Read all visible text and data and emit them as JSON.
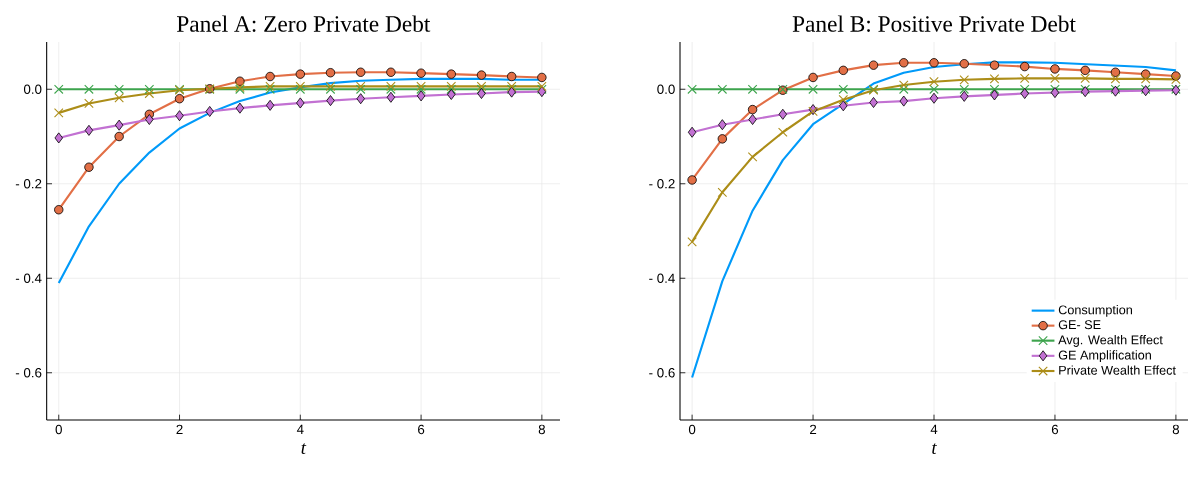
{
  "chart_data": [
    {
      "type": "line",
      "title": "Panel A: Zero Private Debt",
      "xlabel": "t",
      "x": [
        0,
        0.5,
        1,
        1.5,
        2,
        2.5,
        3,
        3.5,
        4,
        4.5,
        5,
        5.5,
        6,
        6.5,
        7,
        7.5,
        8
      ],
      "xlim": [
        -0.2,
        8.3
      ],
      "ylim": [
        -0.7,
        0.1
      ],
      "xticks": [
        0,
        2,
        4,
        6,
        8
      ],
      "yticks": [
        {
          "value": -0.6,
          "label": "- 0.6"
        },
        {
          "value": -0.4,
          "label": "- 0.4"
        },
        {
          "value": -0.2,
          "label": "- 0.2"
        },
        {
          "value": 0,
          "label": "0.0"
        }
      ],
      "grid": true,
      "series": [
        {
          "color": "#009af9",
          "marker": "none",
          "values": [
            -0.41,
            -0.29,
            -0.2,
            -0.134,
            -0.083,
            -0.05,
            -0.025,
            -0.007,
            0.004,
            0.013,
            0.018,
            0.02,
            0.022,
            0.022,
            0.022,
            0.02,
            0.02
          ]
        },
        {
          "color": "#e26f46",
          "marker": "circle",
          "values": [
            -0.255,
            -0.165,
            -0.1,
            -0.053,
            -0.02,
            0.001,
            0.017,
            0.027,
            0.032,
            0.035,
            0.036,
            0.036,
            0.034,
            0.032,
            0.03,
            0.027,
            0.025
          ]
        },
        {
          "color": "#3da44d",
          "marker": "cross",
          "values": [
            0,
            0,
            0,
            0,
            0,
            0,
            0,
            0,
            0,
            0,
            0,
            0,
            0,
            0,
            0,
            0,
            0
          ]
        },
        {
          "color": "#c271d2",
          "marker": "diamond",
          "values": [
            -0.103,
            -0.087,
            -0.076,
            -0.064,
            -0.056,
            -0.047,
            -0.04,
            -0.034,
            -0.029,
            -0.024,
            -0.02,
            -0.017,
            -0.014,
            -0.011,
            -0.009,
            -0.006,
            -0.005
          ]
        },
        {
          "color": "#ac8d18",
          "marker": "cross",
          "values": [
            -0.05,
            -0.03,
            -0.018,
            -0.009,
            -0.002,
            0.001,
            0.004,
            0.006,
            0.006,
            0.006,
            0.006,
            0.006,
            0.006,
            0.006,
            0.006,
            0.006,
            0.006
          ]
        }
      ]
    },
    {
      "type": "line",
      "title": "Panel B: Positive Private Debt",
      "xlabel": "t",
      "x": [
        0,
        0.5,
        1,
        1.5,
        2,
        2.5,
        3,
        3.5,
        4,
        4.5,
        5,
        5.5,
        6,
        6.5,
        7,
        7.5,
        8
      ],
      "xlim": [
        -0.2,
        8.2
      ],
      "ylim": [
        -0.7,
        0.1
      ],
      "xticks": [
        0,
        2,
        4,
        6,
        8
      ],
      "yticks": [
        {
          "value": -0.6,
          "label": "- 0.6"
        },
        {
          "value": -0.4,
          "label": "- 0.4"
        },
        {
          "value": -0.2,
          "label": "- 0.2"
        },
        {
          "value": 0,
          "label": "0.0"
        }
      ],
      "grid": true,
      "legend": "bottom right",
      "series": [
        {
          "name": "Consumption",
          "color": "#009af9",
          "marker": "none",
          "values": [
            -0.61,
            -0.406,
            -0.257,
            -0.15,
            -0.074,
            -0.031,
            0.012,
            0.035,
            0.047,
            0.053,
            0.057,
            0.057,
            0.056,
            0.053,
            0.05,
            0.047,
            0.04
          ]
        },
        {
          "name": "GE- SE",
          "color": "#e26f46",
          "marker": "circle",
          "values": [
            -0.192,
            -0.105,
            -0.043,
            -0.002,
            0.025,
            0.04,
            0.051,
            0.056,
            0.056,
            0.054,
            0.051,
            0.048,
            0.043,
            0.04,
            0.036,
            0.032,
            0.028
          ]
        },
        {
          "name": "Avg. Wealth Effect",
          "color": "#3da44d",
          "marker": "cross",
          "values": [
            0,
            0,
            0,
            0,
            0,
            0,
            0,
            0,
            0,
            0,
            0,
            0,
            0,
            0,
            0,
            0,
            0
          ]
        },
        {
          "name": "GE Amplification",
          "color": "#c271d2",
          "marker": "diamond",
          "values": [
            -0.091,
            -0.075,
            -0.064,
            -0.053,
            -0.043,
            -0.035,
            -0.028,
            -0.025,
            -0.019,
            -0.015,
            -0.012,
            -0.009,
            -0.007,
            -0.005,
            -0.004,
            -0.003,
            -0.002
          ]
        },
        {
          "name": "Private Wealth Effect",
          "color": "#ac8d18",
          "marker": "cross",
          "values": [
            -0.323,
            -0.218,
            -0.143,
            -0.091,
            -0.047,
            -0.022,
            -0.002,
            0.009,
            0.016,
            0.02,
            0.022,
            0.023,
            0.023,
            0.023,
            0.022,
            0.022,
            0.021
          ]
        }
      ]
    }
  ]
}
